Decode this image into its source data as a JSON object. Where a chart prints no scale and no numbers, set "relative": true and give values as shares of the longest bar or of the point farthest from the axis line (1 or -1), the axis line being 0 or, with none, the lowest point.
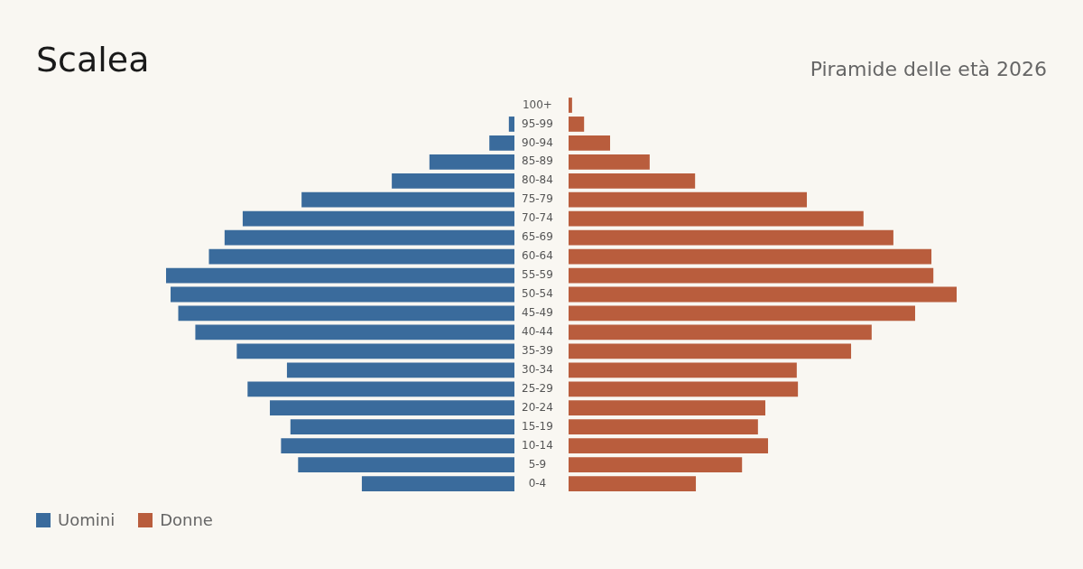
{
  "chart_data": [
    {
      "type": "bar",
      "orientation": "horizontal",
      "relative": true,
      "title": "Scalea",
      "legend": "bottom left",
      "categories": [
        "100+",
        "95-99",
        "90-94",
        "85-89",
        "80-84",
        "75-79",
        "70-74",
        "65-69",
        "60-64",
        "55-59",
        "50-54",
        "45-49",
        "40-44",
        "35-39",
        "30-34",
        "25-29",
        "20-24",
        "15-19",
        "10-14",
        "5-9",
        "0-4"
      ],
      "series": [
        {
          "name": "Uomini",
          "color": "#3a6b9c",
          "values": [
            0,
            -0.016,
            -0.072,
            -0.244,
            -0.352,
            -0.611,
            -0.78,
            -0.832,
            -0.877,
            -1,
            -0.987,
            -0.965,
            -0.916,
            -0.797,
            -0.653,
            -0.766,
            -0.702,
            -0.643,
            -0.67,
            -0.621,
            -0.438
          ]
        }
      ]
    },
    {
      "type": "bar",
      "orientation": "horizontal",
      "relative": true,
      "subtitle": "Piramide delle età 2026",
      "legend": "bottom left",
      "categories": [
        null,
        null,
        null,
        null,
        null,
        null,
        null,
        null,
        null,
        null,
        null,
        null,
        null,
        null,
        null,
        null,
        null,
        null,
        null,
        null,
        null
      ],
      "series": [
        {
          "name": "Donne",
          "color": "#b95d3d",
          "values": [
            0.009,
            0.04,
            0.107,
            0.209,
            0.326,
            0.614,
            0.76,
            0.837,
            0.935,
            0.94,
            1,
            0.893,
            0.781,
            0.728,
            0.588,
            0.591,
            0.507,
            0.488,
            0.514,
            0.447,
            0.328
          ]
        }
      ]
    }
  ]
}
